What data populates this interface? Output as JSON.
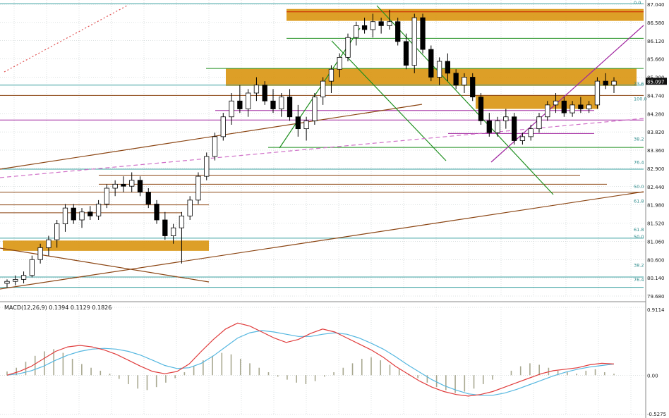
{
  "chart_data": {
    "type": "candlestick",
    "price_panel": {
      "yticks": [
        "87.040",
        "86.580",
        "86.120",
        "85.660",
        "85.200",
        "84.740",
        "84.280",
        "83.820",
        "83.360",
        "82.900",
        "82.440",
        "81.980",
        "81.520",
        "81.060",
        "80.600",
        "80.140",
        "79.680"
      ],
      "ylim": [
        79.68,
        87.04
      ],
      "current_price": "85.097",
      "grid": true,
      "candles": [
        [
          80.0,
          80.1,
          79.9,
          80.05
        ],
        [
          80.05,
          80.2,
          79.95,
          80.1
        ],
        [
          80.1,
          80.3,
          80.0,
          80.2
        ],
        [
          80.2,
          80.7,
          80.15,
          80.6
        ],
        [
          80.6,
          81.0,
          80.5,
          80.9
        ],
        [
          80.9,
          81.2,
          80.7,
          81.1
        ],
        [
          81.1,
          81.6,
          80.9,
          81.5
        ],
        [
          81.5,
          82.0,
          81.3,
          81.9
        ],
        [
          81.9,
          82.0,
          81.5,
          81.6
        ],
        [
          81.6,
          81.9,
          81.4,
          81.8
        ],
        [
          81.8,
          81.95,
          81.6,
          81.7
        ],
        [
          81.7,
          82.1,
          81.6,
          82.0
        ],
        [
          82.0,
          82.5,
          81.9,
          82.4
        ],
        [
          82.4,
          82.6,
          82.2,
          82.5
        ],
        [
          82.5,
          82.7,
          82.3,
          82.45
        ],
        [
          82.45,
          82.8,
          82.3,
          82.6
        ],
        [
          82.6,
          82.7,
          82.2,
          82.3
        ],
        [
          82.3,
          82.4,
          81.9,
          82.0
        ],
        [
          82.0,
          82.1,
          81.5,
          81.6
        ],
        [
          81.6,
          81.8,
          81.1,
          81.2
        ],
        [
          81.2,
          81.5,
          81.0,
          81.4
        ],
        [
          81.4,
          81.8,
          80.5,
          81.7
        ],
        [
          81.7,
          82.2,
          81.6,
          82.1
        ],
        [
          82.1,
          82.8,
          82.0,
          82.7
        ],
        [
          82.7,
          83.3,
          82.6,
          83.2
        ],
        [
          83.2,
          83.8,
          83.1,
          83.7
        ],
        [
          83.7,
          84.3,
          83.6,
          84.2
        ],
        [
          84.2,
          84.8,
          84.0,
          84.6
        ],
        [
          84.6,
          85.0,
          84.3,
          84.4
        ],
        [
          84.4,
          84.9,
          84.2,
          84.8
        ],
        [
          84.8,
          85.2,
          84.6,
          85.0
        ],
        [
          85.0,
          85.1,
          84.5,
          84.6
        ],
        [
          84.6,
          84.9,
          84.3,
          84.4
        ],
        [
          84.4,
          84.8,
          84.2,
          84.7
        ],
        [
          84.7,
          84.9,
          84.1,
          84.2
        ],
        [
          84.2,
          84.5,
          83.7,
          83.9
        ],
        [
          83.9,
          84.2,
          83.6,
          84.1
        ],
        [
          84.1,
          84.8,
          84.0,
          84.7
        ],
        [
          84.7,
          85.2,
          84.5,
          85.1
        ],
        [
          85.1,
          85.5,
          84.8,
          85.4
        ],
        [
          85.4,
          85.8,
          85.2,
          85.7
        ],
        [
          85.7,
          86.3,
          85.6,
          86.2
        ],
        [
          86.2,
          86.6,
          86.0,
          86.5
        ],
        [
          86.5,
          86.7,
          86.3,
          86.4
        ],
        [
          86.4,
          86.8,
          86.2,
          86.6
        ],
        [
          86.6,
          86.7,
          86.3,
          86.5
        ],
        [
          86.5,
          86.9,
          86.4,
          86.6
        ],
        [
          86.6,
          86.7,
          86.0,
          86.1
        ],
        [
          86.1,
          86.3,
          85.4,
          85.5
        ],
        [
          85.5,
          86.8,
          85.3,
          86.7
        ],
        [
          86.7,
          86.8,
          85.8,
          85.9
        ],
        [
          85.9,
          86.0,
          85.1,
          85.2
        ],
        [
          85.2,
          85.7,
          85.0,
          85.6
        ],
        [
          85.6,
          85.8,
          85.1,
          85.3
        ],
        [
          85.3,
          85.4,
          84.9,
          85.0
        ],
        [
          85.0,
          85.3,
          84.8,
          85.2
        ],
        [
          85.2,
          85.3,
          84.6,
          84.7
        ],
        [
          84.7,
          84.8,
          84.0,
          84.1
        ],
        [
          84.1,
          84.3,
          83.7,
          83.8
        ],
        [
          83.8,
          84.2,
          83.7,
          84.1
        ],
        [
          84.1,
          84.4,
          83.9,
          84.2
        ],
        [
          84.2,
          84.3,
          83.5,
          83.6
        ],
        [
          83.6,
          83.8,
          83.5,
          83.7
        ],
        [
          83.7,
          84.0,
          83.6,
          83.9
        ],
        [
          83.9,
          84.3,
          83.8,
          84.2
        ],
        [
          84.2,
          84.6,
          84.1,
          84.5
        ],
        [
          84.5,
          84.8,
          84.3,
          84.6
        ],
        [
          84.6,
          84.7,
          84.2,
          84.3
        ],
        [
          84.3,
          84.6,
          84.2,
          84.5
        ],
        [
          84.5,
          84.7,
          84.3,
          84.4
        ],
        [
          84.4,
          84.6,
          84.3,
          84.5
        ],
        [
          84.5,
          85.2,
          84.4,
          85.1
        ],
        [
          85.1,
          85.3,
          84.9,
          85.0
        ],
        [
          85.0,
          85.2,
          84.8,
          85.1
        ]
      ],
      "fib_labels": [
        "0.0",
        "23.6",
        "100.0",
        "38.2",
        "76.4",
        "50.0",
        "61.8",
        "61.8",
        "50.0",
        "38.2",
        "76.4"
      ]
    },
    "macd_panel": {
      "title": "MACD(12,26,9) 0.1394 0.1129 0.1826",
      "yticks": [
        "0.9114",
        "0.00",
        "-0.5275"
      ],
      "ylim": [
        -0.5275,
        0.9114
      ],
      "histogram": [
        0.05,
        0.1,
        0.18,
        0.26,
        0.32,
        0.35,
        0.3,
        0.22,
        0.15,
        0.1,
        0.06,
        0.02,
        -0.05,
        -0.12,
        -0.18,
        -0.2,
        -0.16,
        -0.1,
        -0.04,
        0.04,
        0.12,
        0.2,
        0.26,
        0.3,
        0.28,
        0.22,
        0.16,
        0.1,
        0.04,
        -0.02,
        -0.06,
        -0.1,
        -0.12,
        -0.08,
        -0.02,
        0.04,
        0.1,
        0.16,
        0.22,
        0.24,
        0.2,
        0.14,
        0.08,
        0.02,
        -0.04,
        -0.1,
        -0.16,
        -0.2,
        -0.24,
        -0.22,
        -0.18,
        -0.12,
        -0.06,
        0.0,
        0.06,
        0.12,
        0.16,
        0.14,
        0.1,
        0.06,
        0.04,
        0.02,
        0.06,
        0.08,
        0.04,
        0.02
      ],
      "macd_line": [
        0.0,
        0.05,
        0.12,
        0.22,
        0.32,
        0.38,
        0.4,
        0.38,
        0.34,
        0.28,
        0.2,
        0.12,
        0.05,
        0.02,
        0.05,
        0.15,
        0.32,
        0.48,
        0.62,
        0.7,
        0.66,
        0.58,
        0.5,
        0.44,
        0.48,
        0.56,
        0.62,
        0.58,
        0.5,
        0.42,
        0.34,
        0.24,
        0.12,
        0.02,
        -0.08,
        -0.16,
        -0.22,
        -0.26,
        -0.28,
        -0.26,
        -0.22,
        -0.16,
        -0.1,
        -0.04,
        0.02,
        0.06,
        0.08,
        0.1,
        0.14,
        0.16,
        0.15
      ],
      "signal_line": [
        0.0,
        0.02,
        0.06,
        0.12,
        0.2,
        0.27,
        0.32,
        0.35,
        0.36,
        0.35,
        0.32,
        0.27,
        0.2,
        0.13,
        0.09,
        0.1,
        0.16,
        0.26,
        0.38,
        0.5,
        0.57,
        0.6,
        0.58,
        0.55,
        0.52,
        0.52,
        0.55,
        0.57,
        0.55,
        0.5,
        0.43,
        0.35,
        0.25,
        0.14,
        0.04,
        -0.06,
        -0.14,
        -0.2,
        -0.25,
        -0.27,
        -0.27,
        -0.24,
        -0.19,
        -0.13,
        -0.07,
        -0.01,
        0.04,
        0.08,
        0.11,
        0.13,
        0.15
      ]
    },
    "colors": {
      "bull_body": "#ffffff",
      "bear_body": "#000000",
      "zone": "#d9950f",
      "fib_line": "#3aa0a0",
      "brown_line": "#8b4513",
      "green_line": "#1f8f1f",
      "magenta_line": "#a0259f",
      "macd_line": "#e03c3c",
      "signal_line": "#55b7e0",
      "histogram": "#a8a890",
      "grid": "#b8c4c4"
    }
  }
}
